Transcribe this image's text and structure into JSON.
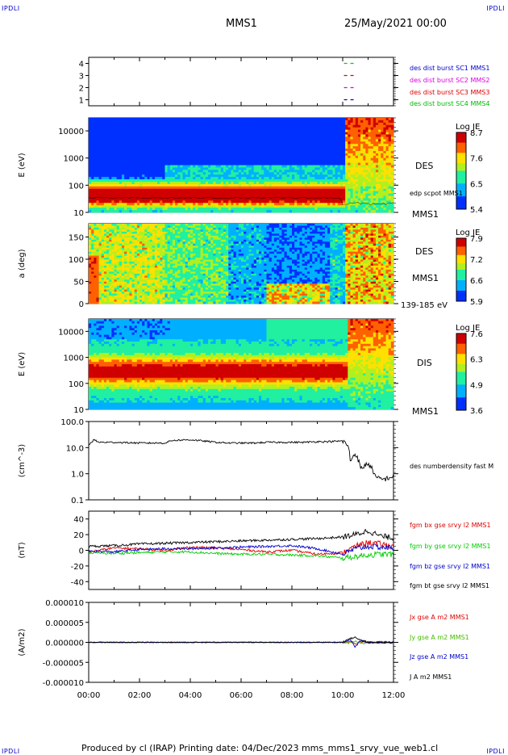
{
  "page": {
    "corner_tl": "IPDLI",
    "corner_tr": "IPDLI",
    "corner_bl": "IPDLI",
    "corner_br": "IPDLI",
    "spacecraft": "MMS1",
    "datetime": "25/May/2021 00:00",
    "footer": "Produced by cl (IRAP)   Printing date: 04/Dec/2023   mms_mms1_srvy_vue_web1.cl",
    "time_ticks": [
      "00:00",
      "02:00",
      "04:00",
      "06:00",
      "08:00",
      "10:00",
      "12:00"
    ]
  },
  "chart_data": [
    {
      "type": "line",
      "id": "availability",
      "ytick_labels": [
        "1",
        "2",
        "3",
        "4"
      ],
      "ylim": [
        0.5,
        4.5
      ],
      "marks": [
        {
          "level": 4,
          "color": "#00cc00"
        },
        {
          "level": 3,
          "color": "#dd0000"
        },
        {
          "level": 2,
          "color": "#dd00dd"
        },
        {
          "level": 1,
          "color": "#0000cc"
        }
      ],
      "mark_hours": [
        10.05,
        10.45
      ],
      "legend": [
        {
          "text": "des dist burst SC1 MMS1",
          "color": "#0000cc"
        },
        {
          "text": "des dist burst SC2 MMS2",
          "color": "#dd00dd"
        },
        {
          "text": "des dist burst SC3 MMS3",
          "color": "#dd0000"
        },
        {
          "text": "des dist burst SC4 MMS4",
          "color": "#00bb00"
        }
      ]
    },
    {
      "type": "heatmap",
      "id": "des-energy",
      "ylabel": "E (eV)",
      "yscale": "log",
      "ylim": [
        10,
        30000
      ],
      "ytick_labels": [
        "10",
        "100",
        "1000",
        "10000"
      ],
      "labels": [
        "DES",
        "edp scpot MMS1",
        "MMS1"
      ],
      "colorbar": {
        "title": "Log JE",
        "labels": [
          "8.7",
          "7.6",
          "6.5",
          "5.4"
        ]
      }
    },
    {
      "type": "heatmap",
      "id": "des-pitch-angle",
      "ylabel": "a (deg)",
      "ylim": [
        0,
        180
      ],
      "ytick_labels": [
        "0",
        "50",
        "100",
        "150"
      ],
      "labels": [
        "DES",
        "MMS1",
        "139-185 eV"
      ],
      "colorbar": {
        "title": "Log JE",
        "labels": [
          "7.9",
          "7.2",
          "6.6",
          "5.9"
        ]
      }
    },
    {
      "type": "heatmap",
      "id": "dis-energy",
      "ylabel": "E (eV)",
      "yscale": "log",
      "ylim": [
        10,
        30000
      ],
      "ytick_labels": [
        "10",
        "100",
        "1000",
        "10000"
      ],
      "labels": [
        "DIS",
        "MMS1"
      ],
      "colorbar": {
        "title": "Log JE",
        "labels": [
          "7.6",
          "6.3",
          "4.9",
          "3.6"
        ]
      }
    },
    {
      "type": "line",
      "id": "density",
      "ylabel": "(cm^-3)",
      "yscale": "log",
      "ylim": [
        0.1,
        100
      ],
      "ytick_labels": [
        "0.1",
        "1.0",
        "10.0",
        "100.0"
      ],
      "series": [
        {
          "name": "des numberdensity fast M",
          "color": "#000000",
          "x": [
            0,
            0.2,
            0.4,
            1,
            2,
            3,
            3.3,
            4,
            4.5,
            5,
            5.5,
            6,
            6.5,
            7,
            7.5,
            8,
            8.5,
            9,
            9.5,
            10,
            10.2,
            10.3,
            10.5,
            10.7,
            11,
            11.3,
            11.6,
            12
          ],
          "values": [
            12,
            20,
            16,
            16,
            15,
            15,
            19,
            20,
            18,
            16,
            15,
            15,
            15,
            16,
            16,
            16,
            16,
            17,
            17,
            18,
            12,
            3,
            6,
            1.5,
            2.5,
            0.7,
            0.6,
            0.8
          ]
        }
      ]
    },
    {
      "type": "line",
      "id": "magnetic-field",
      "ylabel": "(nT)",
      "ylim": [
        -50,
        50
      ],
      "ytick_labels": [
        "-40",
        "-20",
        "0",
        "20",
        "40"
      ],
      "series": [
        {
          "name": "fgm bx gse srvy l2 MMS1",
          "color": "#dd0000",
          "x": [
            0,
            1,
            2,
            3,
            4,
            5,
            6,
            7,
            8,
            9,
            10,
            10.5,
            11,
            11.5,
            12
          ],
          "values": [
            -2,
            3,
            2,
            0,
            4,
            3,
            1,
            -2,
            0,
            -5,
            -3,
            5,
            10,
            8,
            5
          ]
        },
        {
          "name": "fgm by gse srvy l2 MMS1",
          "color": "#00cc00",
          "x": [
            0,
            1,
            2,
            3,
            4,
            5,
            6,
            7,
            8,
            9,
            10,
            10.5,
            11,
            11.5,
            12
          ],
          "values": [
            -3,
            -4,
            -3,
            -2,
            -2,
            -4,
            -5,
            -5,
            -6,
            -7,
            -10,
            -8,
            -6,
            -5,
            -5
          ]
        },
        {
          "name": "fgm bz gse srvy l2 MMS1",
          "color": "#0000cc",
          "x": [
            0,
            1,
            2,
            3,
            4,
            5,
            6,
            7,
            8,
            9,
            10,
            10.5,
            11,
            11.5,
            12
          ],
          "values": [
            -1,
            -2,
            1,
            2,
            2,
            3,
            4,
            5,
            6,
            2,
            -5,
            2,
            5,
            4,
            3
          ]
        },
        {
          "name": "fgm bt gse srvy l2 MMS1",
          "color": "#000000",
          "x": [
            0,
            1,
            2,
            3,
            4,
            5,
            6,
            7,
            8,
            9,
            10,
            10.5,
            11,
            11.5,
            12
          ],
          "values": [
            5,
            6,
            8,
            9,
            10,
            11,
            12,
            13,
            14,
            15,
            17,
            20,
            25,
            18,
            16
          ]
        }
      ]
    },
    {
      "type": "line",
      "id": "current-density",
      "ylabel": "(A/m2)",
      "ylim": [
        -1e-05,
        1e-05
      ],
      "ytick_labels": [
        "-0.000010",
        "-0.000005",
        "0.000000",
        "0.000005",
        "0.000010"
      ],
      "series": [
        {
          "name": "Jx gse A m2 MMS1",
          "color": "#dd0000",
          "x": [
            0,
            10,
            10.3,
            10.5,
            10.7,
            11,
            12
          ],
          "values": [
            0,
            0,
            3e-07,
            -4e-07,
            2e-07,
            0,
            0
          ]
        },
        {
          "name": "Jy gse A m2 MMS1",
          "color": "#44bb00",
          "x": [
            0,
            10,
            10.3,
            10.5,
            10.7,
            11,
            12
          ],
          "values": [
            0,
            0,
            -2e-07,
            3e-07,
            -3e-07,
            0,
            0
          ]
        },
        {
          "name": "Jz gse A m2 MMS1",
          "color": "#0000cc",
          "x": [
            0,
            10,
            10.3,
            10.5,
            10.7,
            11,
            12
          ],
          "values": [
            0,
            0,
            8e-07,
            -1.2e-06,
            5e-07,
            0,
            0
          ]
        },
        {
          "name": "J A m2 MMS1",
          "color": "#000000",
          "x": [
            0,
            10,
            10.3,
            10.5,
            10.7,
            11,
            12
          ],
          "values": [
            0,
            0,
            9e-07,
            1.3e-06,
            6e-07,
            0,
            0
          ]
        }
      ]
    }
  ]
}
